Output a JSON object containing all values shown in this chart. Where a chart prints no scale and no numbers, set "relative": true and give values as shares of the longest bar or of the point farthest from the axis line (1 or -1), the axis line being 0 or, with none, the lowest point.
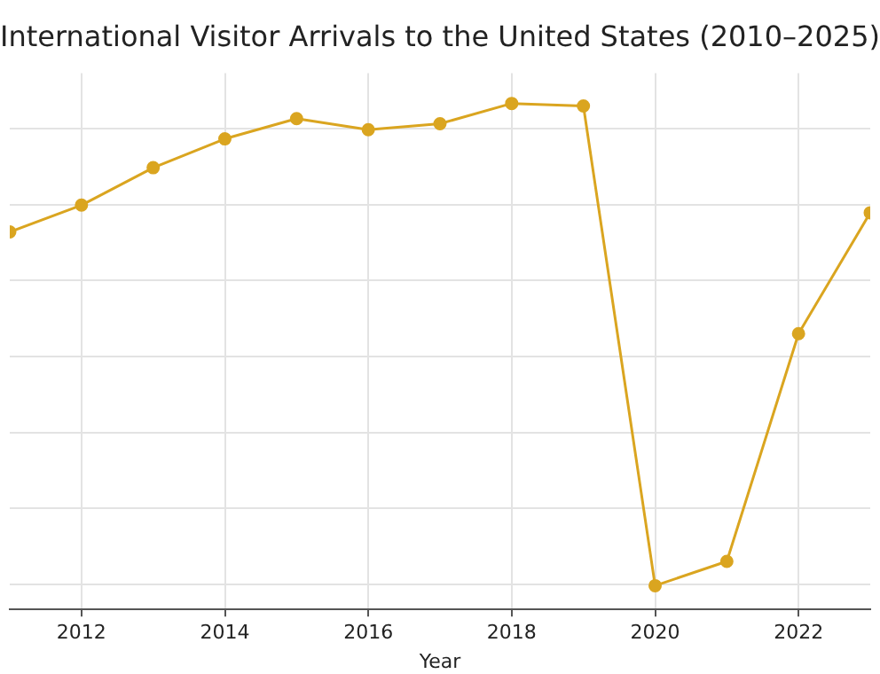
{
  "chart_data": {
    "type": "line",
    "title": "International Visitor Arrivals to the United States (2010–2025)",
    "xlabel": "Year",
    "relative": true,
    "x": [
      2011,
      2012,
      2013,
      2014,
      2015,
      2016,
      2017,
      2018,
      2019,
      2020,
      2021,
      2022,
      2023
    ],
    "series": [
      {
        "color": "#daa520",
        "values": [
          0.746,
          0.799,
          0.873,
          0.93,
          0.97,
          0.948,
          0.96,
          1,
          0.995,
          0.047,
          0.095,
          0.545,
          0.784
        ]
      }
    ],
    "xlim": [
      2011,
      2023
    ],
    "xticks": [
      2012,
      2014,
      2016,
      2018,
      2020,
      2022
    ],
    "grid": true,
    "marker": "circle",
    "line_style": "solid",
    "legend": false
  }
}
